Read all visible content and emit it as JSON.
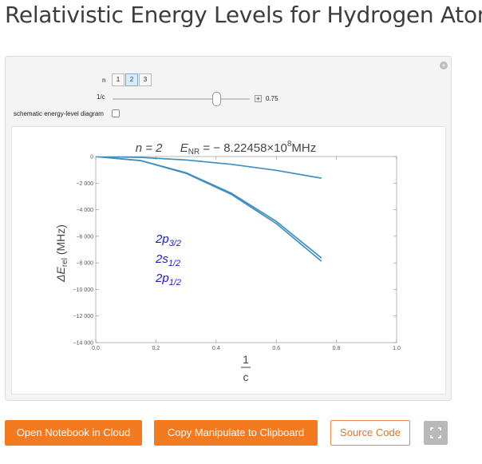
{
  "page": {
    "title": "Relativistic Energy Levels for Hydrogen Atom"
  },
  "controls": {
    "n_label": "n",
    "n_options": [
      "1",
      "2",
      "3"
    ],
    "n_selected": "2",
    "c_label": "1/c",
    "c_value": "0.75",
    "c_fraction": 0.75,
    "schematic_label": "schematic energy-level diagram",
    "schematic_checked": false
  },
  "chart_data": {
    "type": "line",
    "title": "n = 2    E_NR = − 8.22458×10^8 MHz",
    "title_parts": {
      "n": "n = 2",
      "e_nr": "E",
      "e_nr_sub": "NR",
      "e_nr_value": " = − 8.22458×10",
      "exp": "8",
      "unit": "MHz"
    },
    "xlabel": "1/c",
    "ylabel": "ΔE_rel (MHz)",
    "xlim": [
      0,
      1
    ],
    "ylim": [
      -14000,
      0
    ],
    "xticks": [
      "0.0",
      "0.2",
      "0.4",
      "0.6",
      "0.8",
      "1.0"
    ],
    "yticks": [
      "0",
      "−2 000",
      "−4 000",
      "−6 000",
      "−8 000",
      "−10 000",
      "−12 000",
      "−14 000"
    ],
    "series": [
      {
        "label": "2p",
        "sub": "3/2",
        "color": "#3d8fc0",
        "x": [
          0,
          0.15,
          0.3,
          0.45,
          0.6,
          0.75
        ],
        "y": [
          0,
          -65,
          -260,
          -585,
          -1040,
          -1630
        ]
      },
      {
        "label": "2s",
        "sub": "1/2",
        "color": "#3d8fc0",
        "x": [
          0,
          0.15,
          0.3,
          0.45,
          0.6,
          0.75
        ],
        "y": [
          0,
          -305,
          -1220,
          -2745,
          -4880,
          -7630
        ]
      },
      {
        "label": "2p",
        "sub": "1/2",
        "color": "#3d8fc0",
        "x": [
          0,
          0.15,
          0.3,
          0.45,
          0.6,
          0.75
        ],
        "y": [
          0,
          -315,
          -1260,
          -2835,
          -5040,
          -7880
        ]
      }
    ]
  },
  "buttons": {
    "open_cloud": "Open Notebook in Cloud",
    "copy_manipulate": "Copy Manipulate to Clipboard",
    "source_code": "Source Code"
  },
  "colors": {
    "accent": "#f47a20",
    "line": "#3d8fc0",
    "label_blue": "#1c1ccc"
  }
}
